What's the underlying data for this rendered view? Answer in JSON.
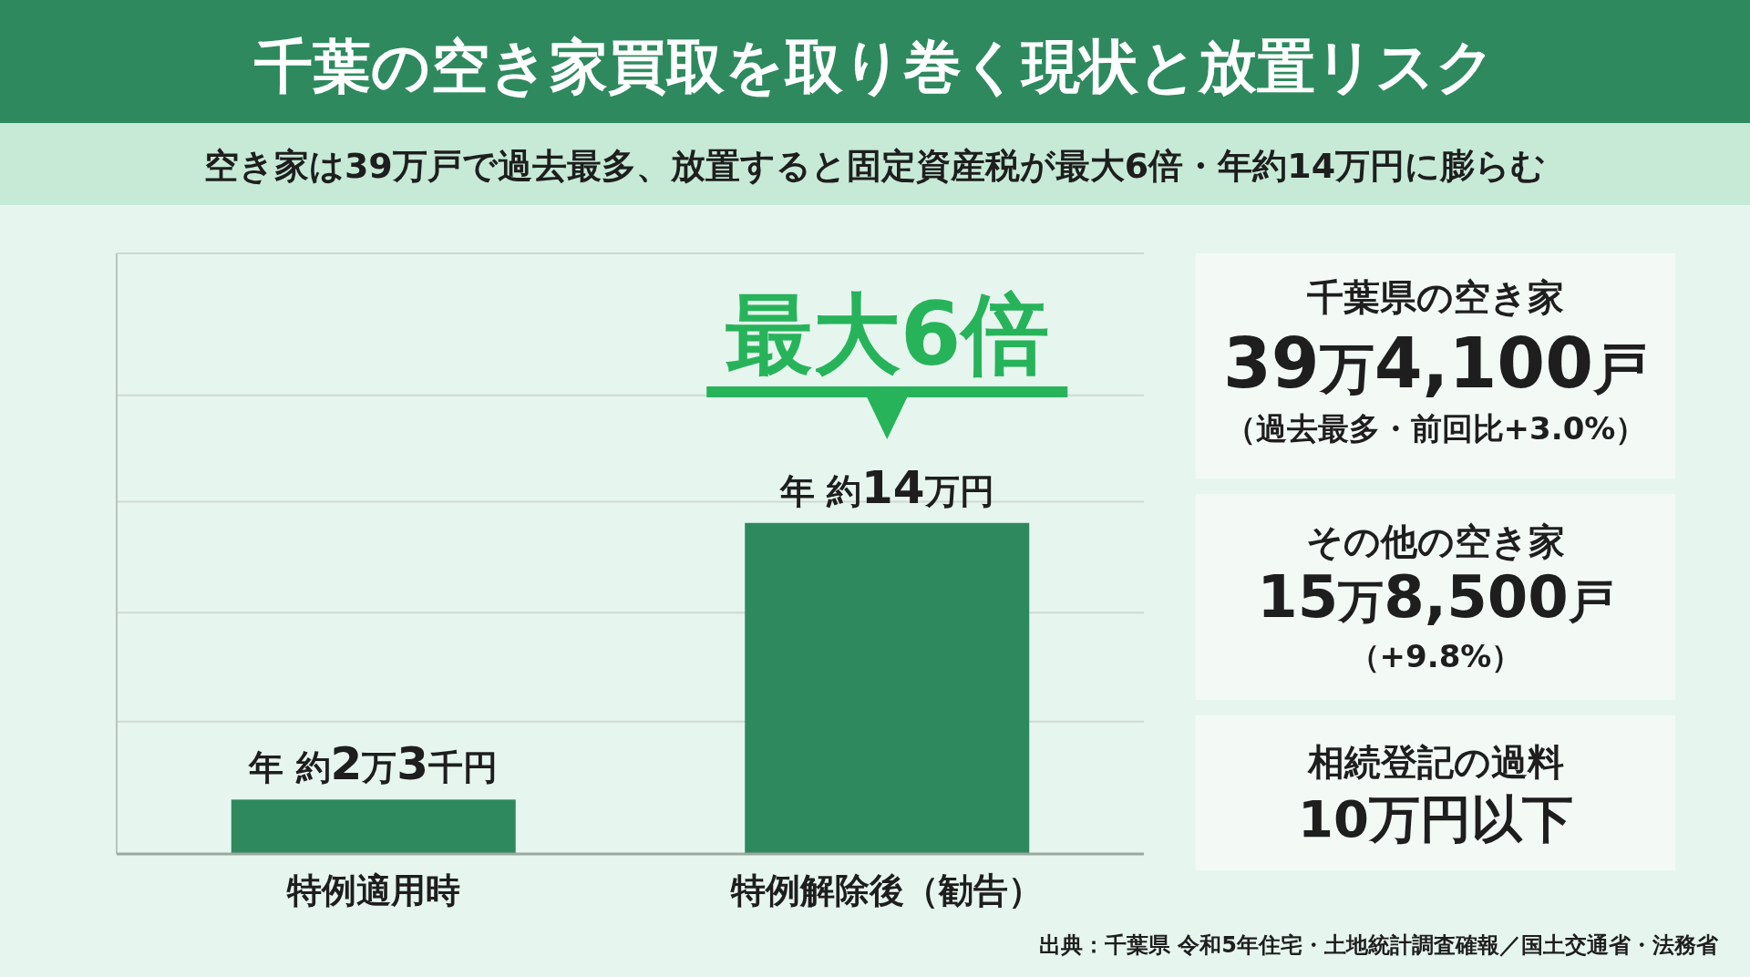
{
  "chart_data": [
    {
      "type": "bar",
      "title": "千葉の空き家買取を取り巻く現状と放置リスク",
      "subtitle": "空き家は39万戸で過去最多、放置すると固定資産税が最大6倍・年約14万円に膨らむ",
      "categories": [
        "特例適用時",
        "特例解除後（勧告）"
      ],
      "values": [
        2.3,
        14
      ],
      "color": "#2e8a5e",
      "value_labels": [
        "年 約2万3千円",
        "年 約14万円"
      ],
      "grid": "y",
      "tick_labels": "x",
      "ylim": [
        0,
        25.4
      ],
      "yticks": [
        {
          "value": 0,
          "label": null
        },
        {
          "value": 5.6,
          "label": null
        },
        {
          "value": 10.2,
          "label": null
        },
        {
          "value": 14.9,
          "label": null
        },
        {
          "value": 19.4,
          "label": null
        },
        {
          "value": 25.4,
          "label": null
        }
      ],
      "annotations": [
        "最大6倍",
        "出典：千葉県 令和5年住宅・土地統計調査確報／国土交通省・法務省"
      ]
    },
    {
      "type": "other",
      "annotations": [
        "千葉県の空き家",
        "39万4,100戸",
        "（過去最多・前回比+3.0%）",
        "その他の空き家",
        "15万8,500戸",
        "（+9.8%）",
        "相続登記の過料",
        "10万円以下"
      ]
    }
  ]
}
